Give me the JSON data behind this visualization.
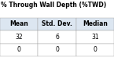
{
  "title": "% Through Wall Depth (%TWD)",
  "columns": [
    "Mean",
    "Std. Dev.",
    "Median"
  ],
  "rows": [
    [
      "32",
      "6",
      "31"
    ],
    [
      "0",
      "0",
      "0"
    ]
  ],
  "title_fontsize": 5.5,
  "cell_fontsize": 5.5,
  "header_bg": "#dce6f1",
  "title_color": "#000000",
  "header_text_color": "#000000",
  "cell_text_color": "#000000",
  "border_color": "#a0a0a0",
  "background_color": "#ffffff"
}
